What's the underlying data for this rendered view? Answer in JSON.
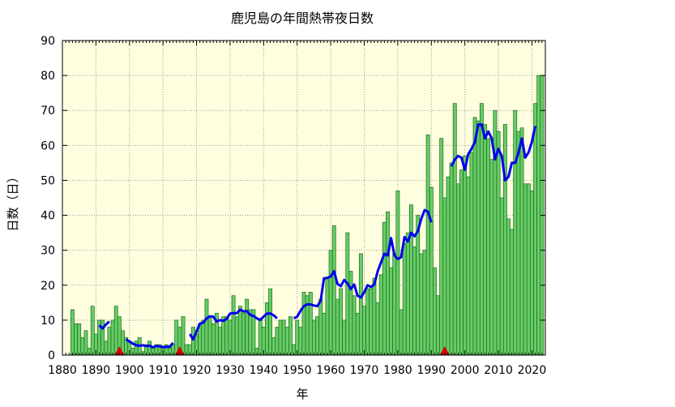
{
  "chart_data": {
    "type": "bar",
    "title": "鹿児島の年間熱帯夜日数",
    "xlabel": "年",
    "ylabel": "日数（日）",
    "xlim": [
      1880,
      2024
    ],
    "ylim": [
      0,
      90
    ],
    "x_ticks": [
      1880,
      1890,
      1900,
      1910,
      1920,
      1930,
      1940,
      1950,
      1960,
      1970,
      1980,
      1990,
      2000,
      2010,
      2020
    ],
    "y_ticks": [
      0,
      10,
      20,
      30,
      40,
      50,
      60,
      70,
      80,
      90
    ],
    "grid": true,
    "colors": {
      "plot_background": "#ffffe0",
      "bar_fill": "#66cc66",
      "bar_stroke": "#1a6b1a",
      "line": "#0000ee",
      "marker": "#dd0000",
      "grid": "#999999"
    },
    "bars": [
      {
        "x": 1883,
        "y": 13
      },
      {
        "x": 1884,
        "y": 9
      },
      {
        "x": 1885,
        "y": 9
      },
      {
        "x": 1886,
        "y": 5
      },
      {
        "x": 1887,
        "y": 7
      },
      {
        "x": 1888,
        "y": 2
      },
      {
        "x": 1889,
        "y": 14
      },
      {
        "x": 1890,
        "y": 6
      },
      {
        "x": 1891,
        "y": 10
      },
      {
        "x": 1892,
        "y": 10
      },
      {
        "x": 1893,
        "y": 4
      },
      {
        "x": 1894,
        "y": 8
      },
      {
        "x": 1895,
        "y": 10
      },
      {
        "x": 1896,
        "y": 14
      },
      {
        "x": 1897,
        "y": 11
      },
      {
        "x": 1898,
        "y": 7
      },
      {
        "x": 1899,
        "y": 5
      },
      {
        "x": 1900,
        "y": 4
      },
      {
        "x": 1901,
        "y": 2
      },
      {
        "x": 1902,
        "y": 4
      },
      {
        "x": 1903,
        "y": 5
      },
      {
        "x": 1904,
        "y": 1
      },
      {
        "x": 1905,
        "y": 3
      },
      {
        "x": 1906,
        "y": 4
      },
      {
        "x": 1907,
        "y": 2
      },
      {
        "x": 1908,
        "y": 3
      },
      {
        "x": 1909,
        "y": 3
      },
      {
        "x": 1910,
        "y": 2
      },
      {
        "x": 1911,
        "y": 3
      },
      {
        "x": 1912,
        "y": 2
      },
      {
        "x": 1913,
        "y": 3
      },
      {
        "x": 1914,
        "y": 10
      },
      {
        "x": 1915,
        "y": 8
      },
      {
        "x": 1916,
        "y": 11
      },
      {
        "x": 1917,
        "y": 3
      },
      {
        "x": 1918,
        "y": 3
      },
      {
        "x": 1919,
        "y": 8
      },
      {
        "x": 1920,
        "y": 6
      },
      {
        "x": 1921,
        "y": 9
      },
      {
        "x": 1922,
        "y": 10
      },
      {
        "x": 1923,
        "y": 16
      },
      {
        "x": 1924,
        "y": 11
      },
      {
        "x": 1925,
        "y": 9
      },
      {
        "x": 1926,
        "y": 12
      },
      {
        "x": 1927,
        "y": 8
      },
      {
        "x": 1928,
        "y": 11
      },
      {
        "x": 1929,
        "y": 11
      },
      {
        "x": 1930,
        "y": 10
      },
      {
        "x": 1931,
        "y": 17
      },
      {
        "x": 1932,
        "y": 11
      },
      {
        "x": 1933,
        "y": 14
      },
      {
        "x": 1934,
        "y": 12
      },
      {
        "x": 1935,
        "y": 16
      },
      {
        "x": 1936,
        "y": 13
      },
      {
        "x": 1937,
        "y": 13
      },
      {
        "x": 1938,
        "y": 2
      },
      {
        "x": 1939,
        "y": 10
      },
      {
        "x": 1940,
        "y": 8
      },
      {
        "x": 1941,
        "y": 15
      },
      {
        "x": 1942,
        "y": 19
      },
      {
        "x": 1943,
        "y": 5
      },
      {
        "x": 1944,
        "y": 8
      },
      {
        "x": 1945,
        "y": 10
      },
      {
        "x": 1946,
        "y": 10
      },
      {
        "x": 1947,
        "y": 8
      },
      {
        "x": 1948,
        "y": 11
      },
      {
        "x": 1949,
        "y": 3
      },
      {
        "x": 1950,
        "y": 10
      },
      {
        "x": 1951,
        "y": 8
      },
      {
        "x": 1952,
        "y": 18
      },
      {
        "x": 1953,
        "y": 17
      },
      {
        "x": 1954,
        "y": 18
      },
      {
        "x": 1955,
        "y": 10
      },
      {
        "x": 1956,
        "y": 11
      },
      {
        "x": 1957,
        "y": 16
      },
      {
        "x": 1958,
        "y": 12
      },
      {
        "x": 1959,
        "y": 22
      },
      {
        "x": 1960,
        "y": 30
      },
      {
        "x": 1961,
        "y": 37
      },
      {
        "x": 1962,
        "y": 16
      },
      {
        "x": 1963,
        "y": 19
      },
      {
        "x": 1964,
        "y": 10
      },
      {
        "x": 1965,
        "y": 35
      },
      {
        "x": 1966,
        "y": 24
      },
      {
        "x": 1967,
        "y": 17
      },
      {
        "x": 1968,
        "y": 12
      },
      {
        "x": 1969,
        "y": 29
      },
      {
        "x": 1970,
        "y": 14
      },
      {
        "x": 1971,
        "y": 19
      },
      {
        "x": 1972,
        "y": 19
      },
      {
        "x": 1973,
        "y": 22
      },
      {
        "x": 1974,
        "y": 15
      },
      {
        "x": 1975,
        "y": 23
      },
      {
        "x": 1976,
        "y": 38
      },
      {
        "x": 1977,
        "y": 41
      },
      {
        "x": 1978,
        "y": 25
      },
      {
        "x": 1979,
        "y": 29
      },
      {
        "x": 1980,
        "y": 47
      },
      {
        "x": 1981,
        "y": 13
      },
      {
        "x": 1982,
        "y": 32
      },
      {
        "x": 1983,
        "y": 35
      },
      {
        "x": 1984,
        "y": 43
      },
      {
        "x": 1985,
        "y": 31
      },
      {
        "x": 1986,
        "y": 40
      },
      {
        "x": 1987,
        "y": 29
      },
      {
        "x": 1988,
        "y": 30
      },
      {
        "x": 1989,
        "y": 63
      },
      {
        "x": 1990,
        "y": 48
      },
      {
        "x": 1991,
        "y": 25
      },
      {
        "x": 1992,
        "y": 17
      },
      {
        "x": 1993,
        "y": 62
      },
      {
        "x": 1994,
        "y": 45
      },
      {
        "x": 1995,
        "y": 51
      },
      {
        "x": 1996,
        "y": 55
      },
      {
        "x": 1997,
        "y": 72
      },
      {
        "x": 1998,
        "y": 49
      },
      {
        "x": 1999,
        "y": 53
      },
      {
        "x": 2000,
        "y": 57
      },
      {
        "x": 2001,
        "y": 51
      },
      {
        "x": 2002,
        "y": 58
      },
      {
        "x": 2003,
        "y": 68
      },
      {
        "x": 2004,
        "y": 67
      },
      {
        "x": 2005,
        "y": 72
      },
      {
        "x": 2006,
        "y": 66
      },
      {
        "x": 2007,
        "y": 62
      },
      {
        "x": 2008,
        "y": 56
      },
      {
        "x": 2009,
        "y": 70
      },
      {
        "x": 2010,
        "y": 64
      },
      {
        "x": 2011,
        "y": 45
      },
      {
        "x": 2012,
        "y": 66
      },
      {
        "x": 2013,
        "y": 39
      },
      {
        "x": 2014,
        "y": 36
      },
      {
        "x": 2015,
        "y": 70
      },
      {
        "x": 2016,
        "y": 64
      },
      {
        "x": 2017,
        "y": 65
      },
      {
        "x": 2018,
        "y": 49
      },
      {
        "x": 2019,
        "y": 49
      },
      {
        "x": 2020,
        "y": 47
      },
      {
        "x": 2021,
        "y": 72
      },
      {
        "x": 2022,
        "y": 80
      },
      {
        "x": 2023,
        "y": 80
      }
    ],
    "moving_average_segments": [
      [
        [
          1891,
          8.5
        ],
        [
          1892,
          7.6
        ],
        [
          1893,
          8.8
        ],
        [
          1894,
          9.6
        ]
      ],
      [
        [
          1899,
          4.5
        ],
        [
          1900,
          3.9
        ],
        [
          1901,
          3.3
        ],
        [
          1902,
          2.8
        ],
        [
          1903,
          2.7
        ],
        [
          1904,
          2.8
        ],
        [
          1905,
          2.6
        ],
        [
          1906,
          2.7
        ],
        [
          1907,
          2.2
        ],
        [
          1908,
          2.6
        ],
        [
          1909,
          2.5
        ],
        [
          1910,
          2.3
        ],
        [
          1911,
          2.4
        ],
        [
          1912,
          2.4
        ],
        [
          1913,
          3.5
        ]
      ],
      [
        [
          1918,
          6
        ],
        [
          1919,
          4.5
        ],
        [
          1920,
          6.8
        ],
        [
          1921,
          9
        ],
        [
          1922,
          9.3
        ],
        [
          1923,
          10.5
        ],
        [
          1924,
          11.1
        ],
        [
          1925,
          11
        ],
        [
          1926,
          9.6
        ],
        [
          1927,
          10
        ],
        [
          1928,
          9.8
        ],
        [
          1929,
          10.4
        ],
        [
          1930,
          11.9
        ],
        [
          1931,
          12
        ],
        [
          1932,
          12
        ],
        [
          1933,
          13
        ],
        [
          1934,
          12.5
        ],
        [
          1935,
          12.6
        ],
        [
          1936,
          11.5
        ],
        [
          1937,
          11.2
        ],
        [
          1938,
          10.5
        ],
        [
          1939,
          10.1
        ],
        [
          1940,
          11
        ],
        [
          1941,
          11.9
        ],
        [
          1942,
          11.9
        ],
        [
          1943,
          11.4
        ],
        [
          1944,
          10.5
        ]
      ],
      [
        [
          1949,
          10.5
        ],
        [
          1950,
          11
        ],
        [
          1951,
          12.7
        ],
        [
          1952,
          14
        ],
        [
          1953,
          14.5
        ],
        [
          1954,
          14.5
        ],
        [
          1955,
          14.2
        ],
        [
          1956,
          14
        ],
        [
          1957,
          15.5
        ],
        [
          1958,
          22
        ],
        [
          1959,
          22.1
        ],
        [
          1960,
          22.5
        ],
        [
          1961,
          24
        ],
        [
          1962,
          20.4
        ],
        [
          1963,
          19.7
        ],
        [
          1964,
          21.5
        ],
        [
          1965,
          20.5
        ],
        [
          1966,
          18.9
        ],
        [
          1967,
          20.2
        ],
        [
          1968,
          17
        ],
        [
          1969,
          16.5
        ],
        [
          1970,
          18
        ],
        [
          1971,
          20
        ],
        [
          1972,
          19.5
        ],
        [
          1973,
          20.2
        ],
        [
          1974,
          24
        ],
        [
          1975,
          26.5
        ],
        [
          1976,
          29
        ],
        [
          1977,
          28.5
        ],
        [
          1978,
          33.5
        ],
        [
          1979,
          28.5
        ],
        [
          1980,
          27.5
        ],
        [
          1981,
          28
        ],
        [
          1982,
          33.8
        ],
        [
          1983,
          32.5
        ],
        [
          1984,
          35
        ],
        [
          1985,
          34
        ],
        [
          1986,
          35.5
        ],
        [
          1987,
          39
        ],
        [
          1988,
          41.5
        ],
        [
          1989,
          41
        ],
        [
          1990,
          38
        ]
      ],
      [
        [
          1996,
          54
        ],
        [
          1997,
          56
        ],
        [
          1998,
          57
        ],
        [
          1999,
          56.5
        ],
        [
          2000,
          53
        ],
        [
          2001,
          57.5
        ],
        [
          2002,
          59
        ],
        [
          2003,
          61
        ],
        [
          2004,
          66
        ],
        [
          2005,
          66
        ],
        [
          2006,
          62
        ],
        [
          2007,
          64
        ],
        [
          2008,
          62
        ],
        [
          2009,
          56
        ],
        [
          2010,
          59
        ],
        [
          2011,
          57
        ],
        [
          2012,
          50
        ],
        [
          2013,
          51
        ],
        [
          2014,
          55
        ],
        [
          2015,
          55
        ],
        [
          2016,
          58
        ],
        [
          2017,
          62
        ],
        [
          2018,
          56.5
        ],
        [
          2019,
          58
        ],
        [
          2020,
          61
        ],
        [
          2021,
          65.5
        ]
      ]
    ],
    "station_relocation_markers": [
      1897,
      1915,
      1994
    ]
  }
}
